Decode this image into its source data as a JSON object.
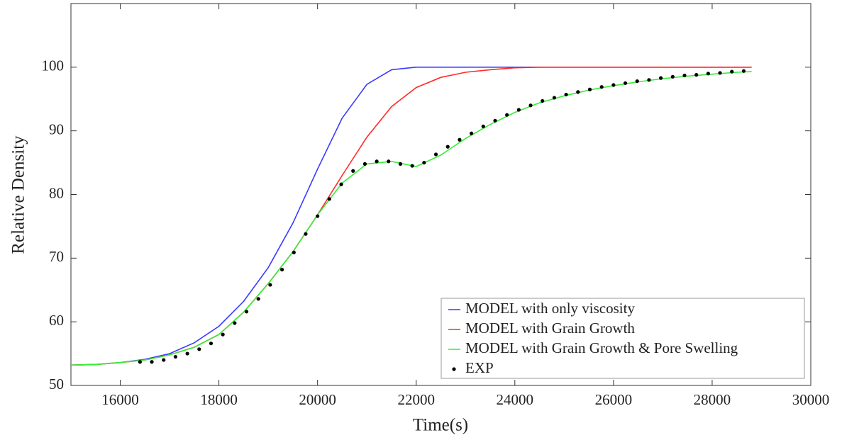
{
  "chart_data": {
    "type": "line",
    "xlabel": "Time(s)",
    "ylabel": "Relative Density",
    "xlim": [
      15000,
      30000
    ],
    "xticks": [
      16000,
      18000,
      20000,
      22000,
      24000,
      26000,
      28000,
      30000
    ],
    "ylim": [
      50,
      110
    ],
    "yticks": [
      50,
      60,
      70,
      80,
      90,
      100
    ],
    "legend": "lower right",
    "x": [
      15000,
      15500,
      16000,
      16500,
      17000,
      17500,
      18000,
      18500,
      19000,
      19500,
      20000,
      20500,
      21000,
      21500,
      22000,
      22500,
      23000,
      23500,
      24000,
      24500,
      25000,
      25500,
      26000,
      26500,
      27000,
      27500,
      28000,
      28500,
      28800
    ],
    "series": [
      {
        "name": "MODEL with only viscosity",
        "color": "#3a3aff",
        "values": [
          53.2,
          53.3,
          53.6,
          54.1,
          55.0,
          56.7,
          59.3,
          63.2,
          68.5,
          75.5,
          84.0,
          92.0,
          97.3,
          99.6,
          100,
          100,
          100,
          100,
          100,
          100,
          100,
          100,
          100,
          100,
          100,
          100,
          100,
          100,
          100
        ]
      },
      {
        "name": "MODEL with Grain Growth",
        "color": "#ff2a2a",
        "values": [
          53.2,
          53.3,
          53.6,
          54.0,
          54.8,
          56.0,
          58.0,
          61.5,
          66.0,
          71.0,
          76.8,
          83.0,
          89.0,
          93.8,
          96.8,
          98.4,
          99.2,
          99.6,
          99.9,
          100,
          100,
          100,
          100,
          100,
          100,
          100,
          100,
          100,
          100
        ]
      },
      {
        "name": "MODEL with Grain Growth & Pore Swelling",
        "color": "#33ee33",
        "values": [
          53.2,
          53.3,
          53.6,
          54.0,
          54.8,
          56.0,
          58.0,
          61.5,
          66.0,
          71.0,
          76.8,
          81.8,
          84.8,
          85.2,
          84.4,
          86.2,
          88.8,
          91.0,
          92.9,
          94.4,
          95.5,
          96.4,
          97.1,
          97.7,
          98.2,
          98.6,
          98.9,
          99.2,
          99.3
        ]
      },
      {
        "name": "EXP",
        "color": "#000000",
        "type": "scatter",
        "x": [
          16400,
          16640,
          16880,
          17120,
          17360,
          17600,
          17840,
          18080,
          18320,
          18560,
          18800,
          19040,
          19280,
          19520,
          19760,
          20000,
          20240,
          20480,
          20720,
          20960,
          21200,
          21440,
          21680,
          21920,
          22160,
          22400,
          22640,
          22880,
          23120,
          23360,
          23600,
          23840,
          24080,
          24320,
          24560,
          24800,
          25040,
          25280,
          25520,
          25760,
          26000,
          26240,
          26480,
          26720,
          26960,
          27200,
          27440,
          27680,
          27920,
          28160,
          28400,
          28640
        ],
        "values": [
          53.7,
          53.7,
          54.0,
          54.5,
          55.0,
          55.7,
          56.6,
          58.0,
          59.8,
          61.6,
          63.6,
          65.8,
          68.2,
          70.9,
          73.8,
          76.6,
          79.3,
          81.6,
          83.7,
          84.8,
          85.2,
          85.2,
          84.8,
          84.5,
          85.0,
          86.3,
          87.5,
          88.6,
          89.6,
          90.7,
          91.6,
          92.5,
          93.3,
          94.0,
          94.7,
          95.2,
          95.7,
          96.1,
          96.5,
          96.9,
          97.2,
          97.5,
          97.8,
          98.0,
          98.3,
          98.5,
          98.7,
          98.8,
          99.0,
          99.1,
          99.3,
          99.4
        ]
      }
    ]
  }
}
